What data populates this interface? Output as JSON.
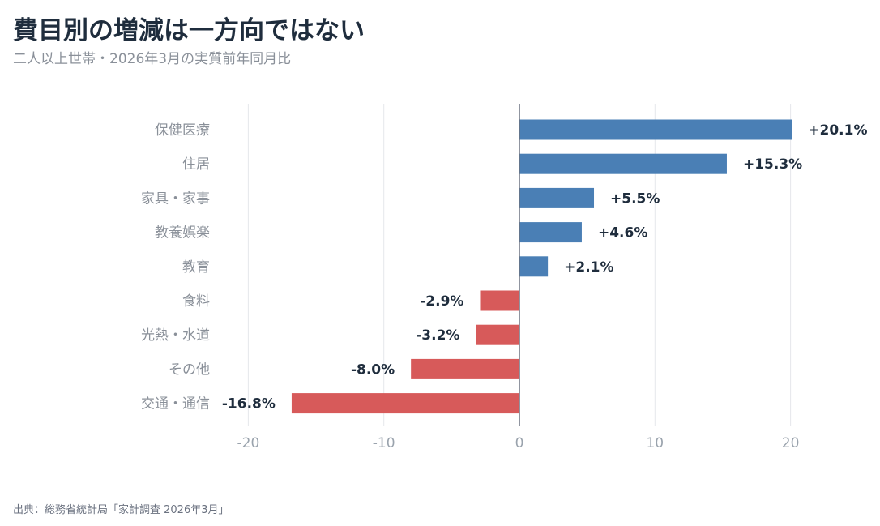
{
  "title": "費目別の増減は一方向ではない",
  "subtitle": "二人以上世帯・2026年3月の実質前年同月比",
  "source": "出典：総務省統計局「家計調査 2026年3月」",
  "colors": {
    "positive": "#4a7fb5",
    "negative": "#d75a5a",
    "grid": "#e5e7eb",
    "zero_line": "#6b7280"
  },
  "chart_data": {
    "type": "bar",
    "orientation": "horizontal",
    "categories": [
      "保健医療",
      "住居",
      "家具・家事",
      "教養娯楽",
      "教育",
      "食料",
      "光熱・水道",
      "その他",
      "交通・通信"
    ],
    "values": [
      20.1,
      15.3,
      5.5,
      4.6,
      2.1,
      -2.9,
      -3.2,
      -8.0,
      -16.8
    ],
    "value_labels": [
      "+20.1%",
      "+15.3%",
      "+5.5%",
      "+4.6%",
      "+2.1%",
      "-2.9%",
      "-3.2%",
      "-8.0%",
      "-16.8%"
    ],
    "xlim": [
      -20,
      20
    ],
    "xticks": [
      -20,
      -10,
      0,
      10,
      20
    ],
    "xtick_labels": [
      "-20",
      "-10",
      "0",
      "10",
      "20"
    ],
    "grid": true
  }
}
